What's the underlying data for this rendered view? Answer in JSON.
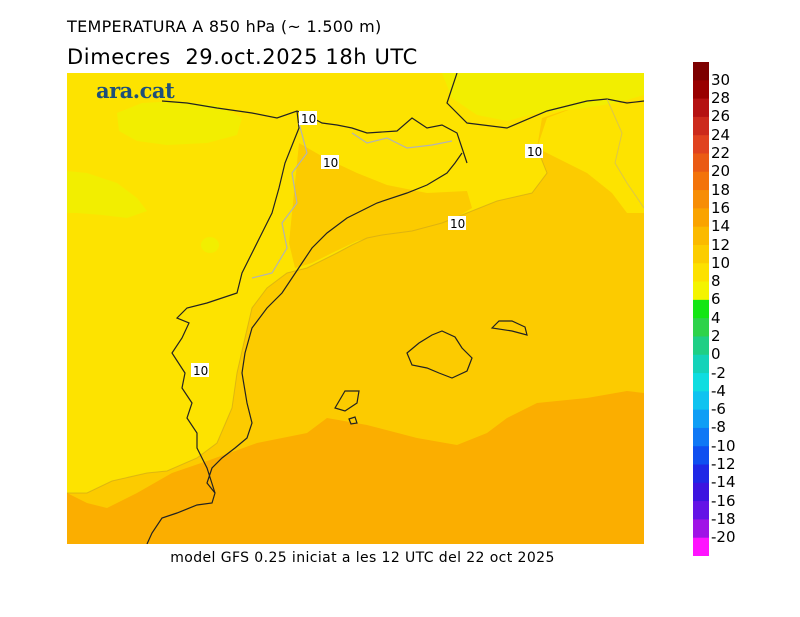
{
  "header": {
    "title": "TEMPERATURA A 850 hPa (~ 1.500 m)",
    "day": "Dimecres",
    "date": "29.oct.2025",
    "time": "18h UTC"
  },
  "logo": {
    "text": "ara.cat"
  },
  "footer": {
    "text": "model GFS 0.25 iniciat a les 12 UTC del 22 oct 2025"
  },
  "contour_labels": [
    "10",
    "10",
    "10",
    "10",
    "10"
  ],
  "colors": {
    "band_6_8": "#f2ee00",
    "band_8_10": "#fde300",
    "band_10_12": "#fccb00",
    "band_12_14": "#fbae00",
    "coast_line": "#222222",
    "border_line": "#b3b3b3"
  },
  "legend": [
    {
      "label": "30",
      "color": "#7d0000"
    },
    {
      "label": "28",
      "color": "#990000"
    },
    {
      "label": "26",
      "color": "#b51212"
    },
    {
      "label": "24",
      "color": "#cc2a1c"
    },
    {
      "label": "22",
      "color": "#e0421f"
    },
    {
      "label": "20",
      "color": "#ea5a14"
    },
    {
      "label": "18",
      "color": "#f3730a"
    },
    {
      "label": "16",
      "color": "#f78d05"
    },
    {
      "label": "14",
      "color": "#faa300"
    },
    {
      "label": "12",
      "color": "#fbba00"
    },
    {
      "label": "10",
      "color": "#fccd00"
    },
    {
      "label": "8",
      "color": "#fde100"
    },
    {
      "label": "6",
      "color": "#f4f400"
    },
    {
      "label": "4",
      "color": "#14e614"
    },
    {
      "label": "2",
      "color": "#2ed34a"
    },
    {
      "label": "0",
      "color": "#1fcf85"
    },
    {
      "label": "-2",
      "color": "#14d3b9"
    },
    {
      "label": "-4",
      "color": "#0fdde0"
    },
    {
      "label": "-6",
      "color": "#0fc3f0"
    },
    {
      "label": "-8",
      "color": "#0f9ef5"
    },
    {
      "label": "-10",
      "color": "#0f78f5"
    },
    {
      "label": "-12",
      "color": "#0f4ff0"
    },
    {
      "label": "-14",
      "color": "#1f28e6"
    },
    {
      "label": "-16",
      "color": "#3c14e0"
    },
    {
      "label": "-18",
      "color": "#6414e6"
    },
    {
      "label": "-20",
      "color": "#a014e6"
    },
    {
      "label": "",
      "color": "#ff14ff"
    }
  ]
}
